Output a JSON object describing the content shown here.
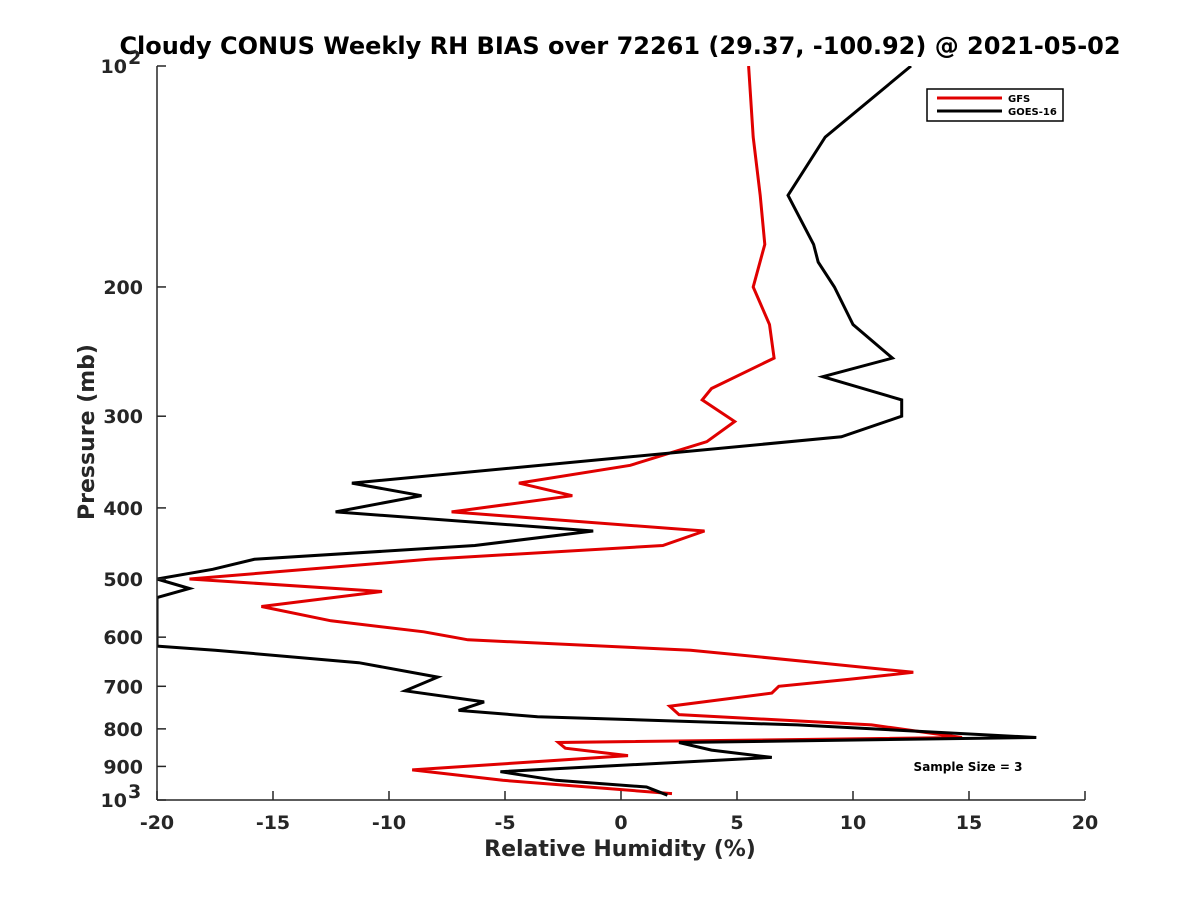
{
  "chart_data": {
    "type": "line",
    "title": "Cloudy CONUS Weekly RH BIAS over 72261 (29.37, -100.92) @ 2021-05-02",
    "xlabel": "Relative Humidity (%)",
    "ylabel": "Pressure (mb)",
    "xlim": [
      -20,
      20
    ],
    "ylim": [
      1000,
      100
    ],
    "yscale": "log",
    "x_ticks": [
      "-20",
      "-15",
      "-10",
      "-5",
      "0",
      "5",
      "10",
      "15",
      "20"
    ],
    "x_tick_values": [
      -20,
      -15,
      -10,
      -5,
      0,
      5,
      10,
      15,
      20
    ],
    "y_tick_values": [
      200,
      300,
      400,
      500,
      600,
      700,
      800,
      900
    ],
    "y_ticks": [
      "200",
      "300",
      "400",
      "500",
      "600",
      "700",
      "800",
      "900"
    ],
    "y_top_label": {
      "base": "10",
      "exp": "2"
    },
    "y_bottom_label": {
      "base": "10",
      "exp": "3"
    },
    "grid": false,
    "legend_position": "top-right",
    "annotation": "Sample Size = 3",
    "series": [
      {
        "name": "GFS",
        "color": "#e00000",
        "points": [
          [
            5.5,
            100
          ],
          [
            5.7,
            125
          ],
          [
            6.0,
            150
          ],
          [
            6.2,
            175
          ],
          [
            5.7,
            200
          ],
          [
            6.4,
            225
          ],
          [
            6.6,
            250
          ],
          [
            3.9,
            275
          ],
          [
            3.5,
            285
          ],
          [
            4.9,
            305
          ],
          [
            3.7,
            325
          ],
          [
            0.4,
            350
          ],
          [
            -4.4,
            370
          ],
          [
            -2.1,
            385
          ],
          [
            -7.3,
            405
          ],
          [
            3.6,
            430
          ],
          [
            1.8,
            450
          ],
          [
            -8.3,
            470
          ],
          [
            -18.6,
            500
          ],
          [
            -10.3,
            520
          ],
          [
            -15.5,
            545
          ],
          [
            -12.5,
            570
          ],
          [
            -8.5,
            590
          ],
          [
            -6.6,
            605
          ],
          [
            3.0,
            625
          ],
          [
            8.5,
            650
          ],
          [
            12.6,
            670
          ],
          [
            9.8,
            685
          ],
          [
            6.8,
            700
          ],
          [
            6.5,
            715
          ],
          [
            2.1,
            745
          ],
          [
            2.5,
            765
          ],
          [
            10.8,
            790
          ],
          [
            14.7,
            822
          ],
          [
            -2.7,
            835
          ],
          [
            -2.4,
            850
          ],
          [
            0.3,
            870
          ],
          [
            -9.0,
            910
          ],
          [
            -5.1,
            940
          ],
          [
            2.2,
            980
          ]
        ]
      },
      {
        "name": "GOES-16",
        "color": "#000000",
        "points": [
          [
            12.5,
            100
          ],
          [
            8.8,
            125
          ],
          [
            7.2,
            150
          ],
          [
            8.3,
            175
          ],
          [
            8.5,
            185
          ],
          [
            9.2,
            200
          ],
          [
            10.0,
            225
          ],
          [
            11.7,
            250
          ],
          [
            8.7,
            265
          ],
          [
            12.1,
            285
          ],
          [
            12.1,
            300
          ],
          [
            9.5,
            320
          ],
          [
            -11.6,
            370
          ],
          [
            -8.6,
            385
          ],
          [
            -12.3,
            405
          ],
          [
            -1.2,
            430
          ],
          [
            -6.3,
            450
          ],
          [
            -15.8,
            470
          ],
          [
            -17.6,
            485
          ],
          [
            -20.0,
            500
          ],
          [
            -18.6,
            515
          ],
          [
            -20.0,
            530
          ],
          [
            -20.0,
            617
          ],
          [
            -17.5,
            625
          ],
          [
            -11.3,
            650
          ],
          [
            -7.9,
            680
          ],
          [
            -9.3,
            710
          ],
          [
            -5.9,
            735
          ],
          [
            -7.0,
            755
          ],
          [
            -3.6,
            770
          ],
          [
            7.6,
            790
          ],
          [
            17.9,
            822
          ],
          [
            2.5,
            835
          ],
          [
            3.9,
            855
          ],
          [
            6.5,
            875
          ],
          [
            -5.2,
            915
          ],
          [
            -2.8,
            940
          ],
          [
            1.1,
            960
          ],
          [
            2.0,
            985
          ]
        ]
      }
    ]
  }
}
